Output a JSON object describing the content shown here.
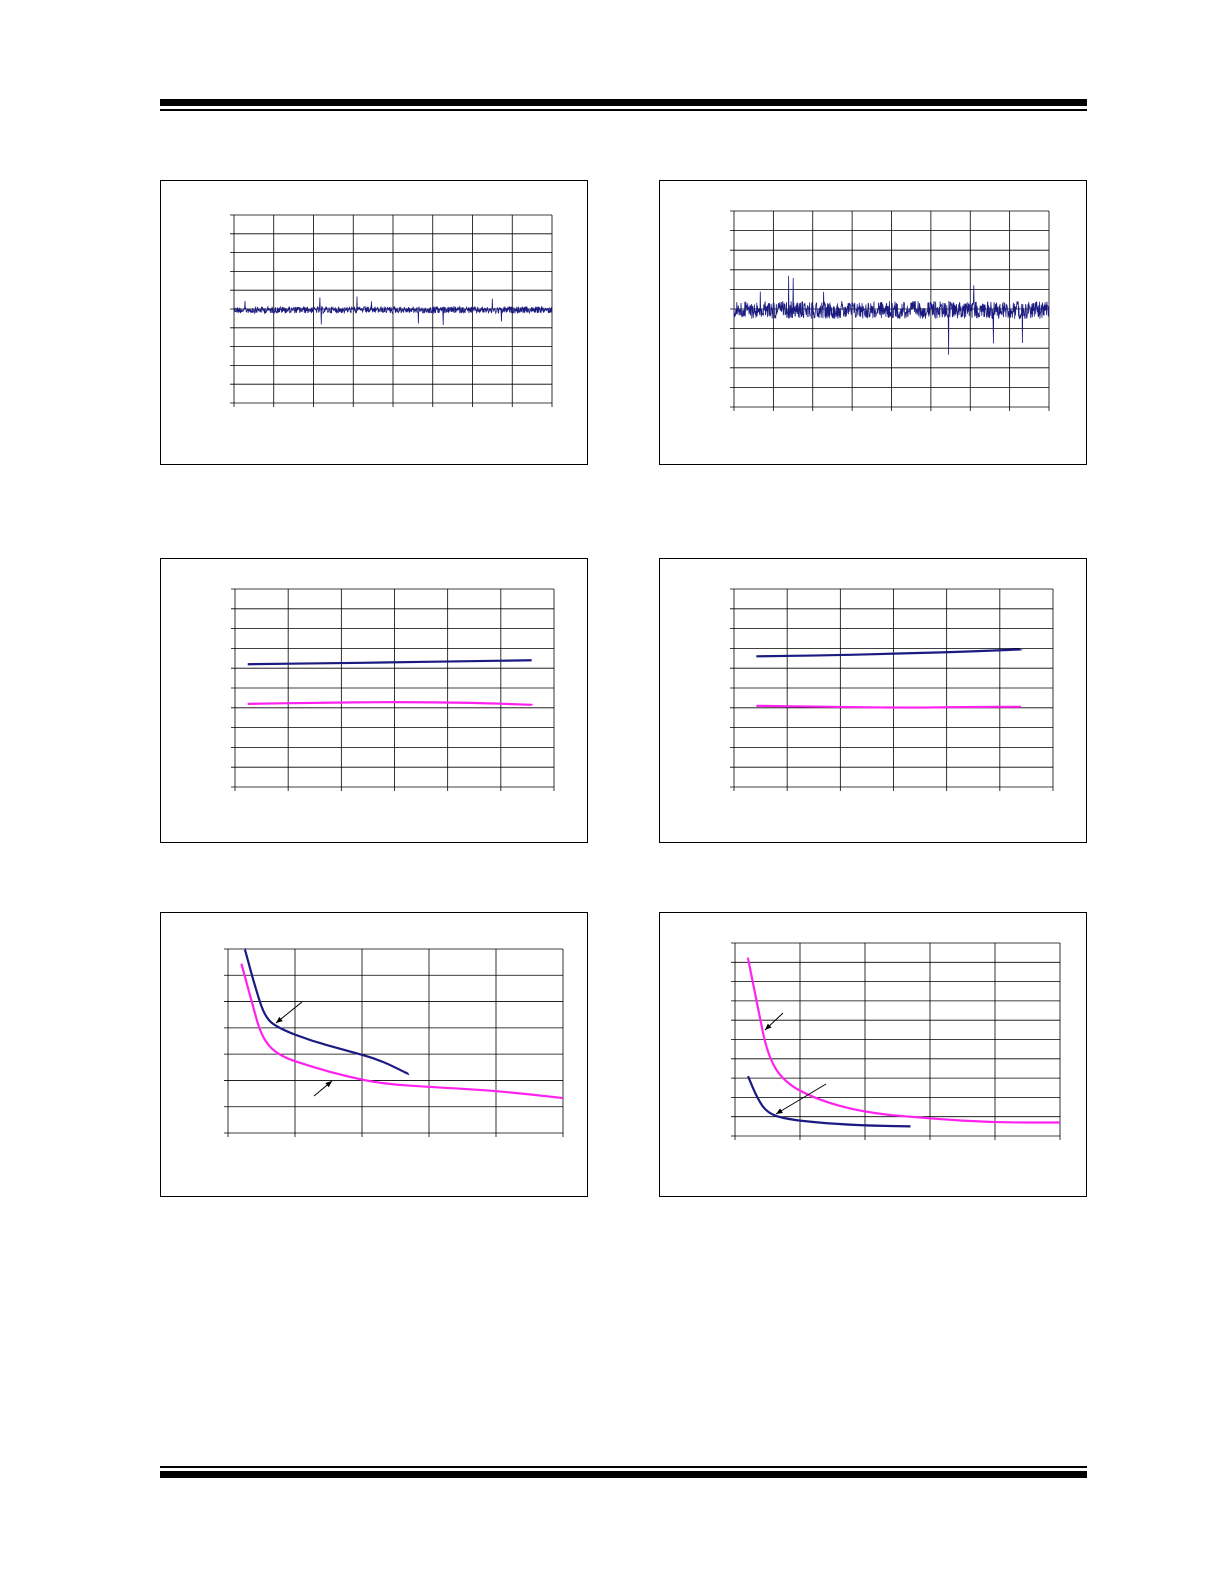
{
  "colors": {
    "navy": "#1a1a80",
    "magenta": "#ff22ee",
    "grid": "#000000",
    "rule": "#000000"
  },
  "charts": [
    {
      "id": "chart1",
      "type": "line",
      "series": [
        {
          "kind": "noise",
          "level": 0.505,
          "amplitude": 0.018,
          "color": "#1a1a80"
        }
      ],
      "xlim": [
        0,
        8
      ],
      "ylim": [
        0,
        10
      ],
      "grid": true,
      "xgrid": 8,
      "ygrid": 10
    },
    {
      "id": "chart2",
      "type": "line",
      "series": [
        {
          "kind": "noise",
          "level": 0.505,
          "amplitude": 0.045,
          "color": "#1a1a80"
        }
      ],
      "xlim": [
        0,
        8
      ],
      "ylim": [
        0,
        10
      ],
      "grid": true,
      "xgrid": 8,
      "ygrid": 10
    },
    {
      "id": "chart3",
      "type": "line",
      "series": [
        {
          "points": [
            [
              0.04,
              0.62
            ],
            [
              0.3,
              0.625
            ],
            [
              0.5,
              0.63
            ],
            [
              0.7,
              0.635
            ],
            [
              0.93,
              0.64
            ]
          ],
          "color": "#1a1a80"
        },
        {
          "points": [
            [
              0.04,
              0.42
            ],
            [
              0.25,
              0.425
            ],
            [
              0.5,
              0.43
            ],
            [
              0.75,
              0.425
            ],
            [
              0.93,
              0.415
            ]
          ],
          "color": "#ff22ee"
        }
      ],
      "xlim": [
        0,
        6
      ],
      "ylim": [
        0,
        10
      ],
      "grid": true,
      "xgrid": 6,
      "ygrid": 10
    },
    {
      "id": "chart4",
      "type": "line",
      "series": [
        {
          "points": [
            [
              0.07,
              0.66
            ],
            [
              0.3,
              0.665
            ],
            [
              0.55,
              0.675
            ],
            [
              0.75,
              0.685
            ],
            [
              0.9,
              0.695
            ]
          ],
          "color": "#1a1a80"
        },
        {
          "points": [
            [
              0.07,
              0.41
            ],
            [
              0.3,
              0.405
            ],
            [
              0.55,
              0.4
            ],
            [
              0.75,
              0.405
            ],
            [
              0.9,
              0.405
            ]
          ],
          "color": "#ff22ee"
        }
      ],
      "xlim": [
        0,
        6
      ],
      "ylim": [
        0,
        10
      ],
      "grid": true,
      "xgrid": 6,
      "ygrid": 10
    },
    {
      "id": "chart5",
      "type": "line",
      "series": [
        {
          "points": [
            [
              0.05,
              1.0
            ],
            [
              0.08,
              0.8
            ],
            [
              0.11,
              0.63
            ],
            [
              0.15,
              0.57
            ],
            [
              0.25,
              0.5
            ],
            [
              0.35,
              0.45
            ],
            [
              0.45,
              0.4
            ],
            [
              0.54,
              0.32
            ]
          ],
          "color": "#1a1a80"
        },
        {
          "points": [
            [
              0.04,
              0.92
            ],
            [
              0.07,
              0.72
            ],
            [
              0.1,
              0.52
            ],
            [
              0.15,
              0.42
            ],
            [
              0.25,
              0.36
            ],
            [
              0.35,
              0.31
            ],
            [
              0.45,
              0.27
            ],
            [
              0.6,
              0.25
            ],
            [
              0.8,
              0.23
            ],
            [
              1.0,
              0.19
            ]
          ],
          "color": "#ff22ee"
        }
      ],
      "xlim": [
        0,
        5
      ],
      "ylim": [
        0,
        7
      ],
      "grid": true,
      "xgrid": 5,
      "ygrid": 7
    },
    {
      "id": "chart6",
      "type": "line",
      "series": [
        {
          "points": [
            [
              0.04,
              0.92
            ],
            [
              0.07,
              0.67
            ],
            [
              0.1,
              0.42
            ],
            [
              0.15,
              0.28
            ],
            [
              0.25,
              0.19
            ],
            [
              0.4,
              0.12
            ],
            [
              0.6,
              0.09
            ],
            [
              0.8,
              0.07
            ],
            [
              1.0,
              0.07
            ]
          ],
          "color": "#ff22ee"
        },
        {
          "points": [
            [
              0.04,
              0.31
            ],
            [
              0.07,
              0.19
            ],
            [
              0.1,
              0.12
            ],
            [
              0.15,
              0.09
            ],
            [
              0.25,
              0.07
            ],
            [
              0.38,
              0.055
            ],
            [
              0.54,
              0.05
            ]
          ],
          "color": "#1a1a80"
        }
      ],
      "xlim": [
        0,
        5
      ],
      "ylim": [
        0,
        10
      ],
      "grid": true,
      "xgrid": 5,
      "ygrid": 10
    }
  ]
}
